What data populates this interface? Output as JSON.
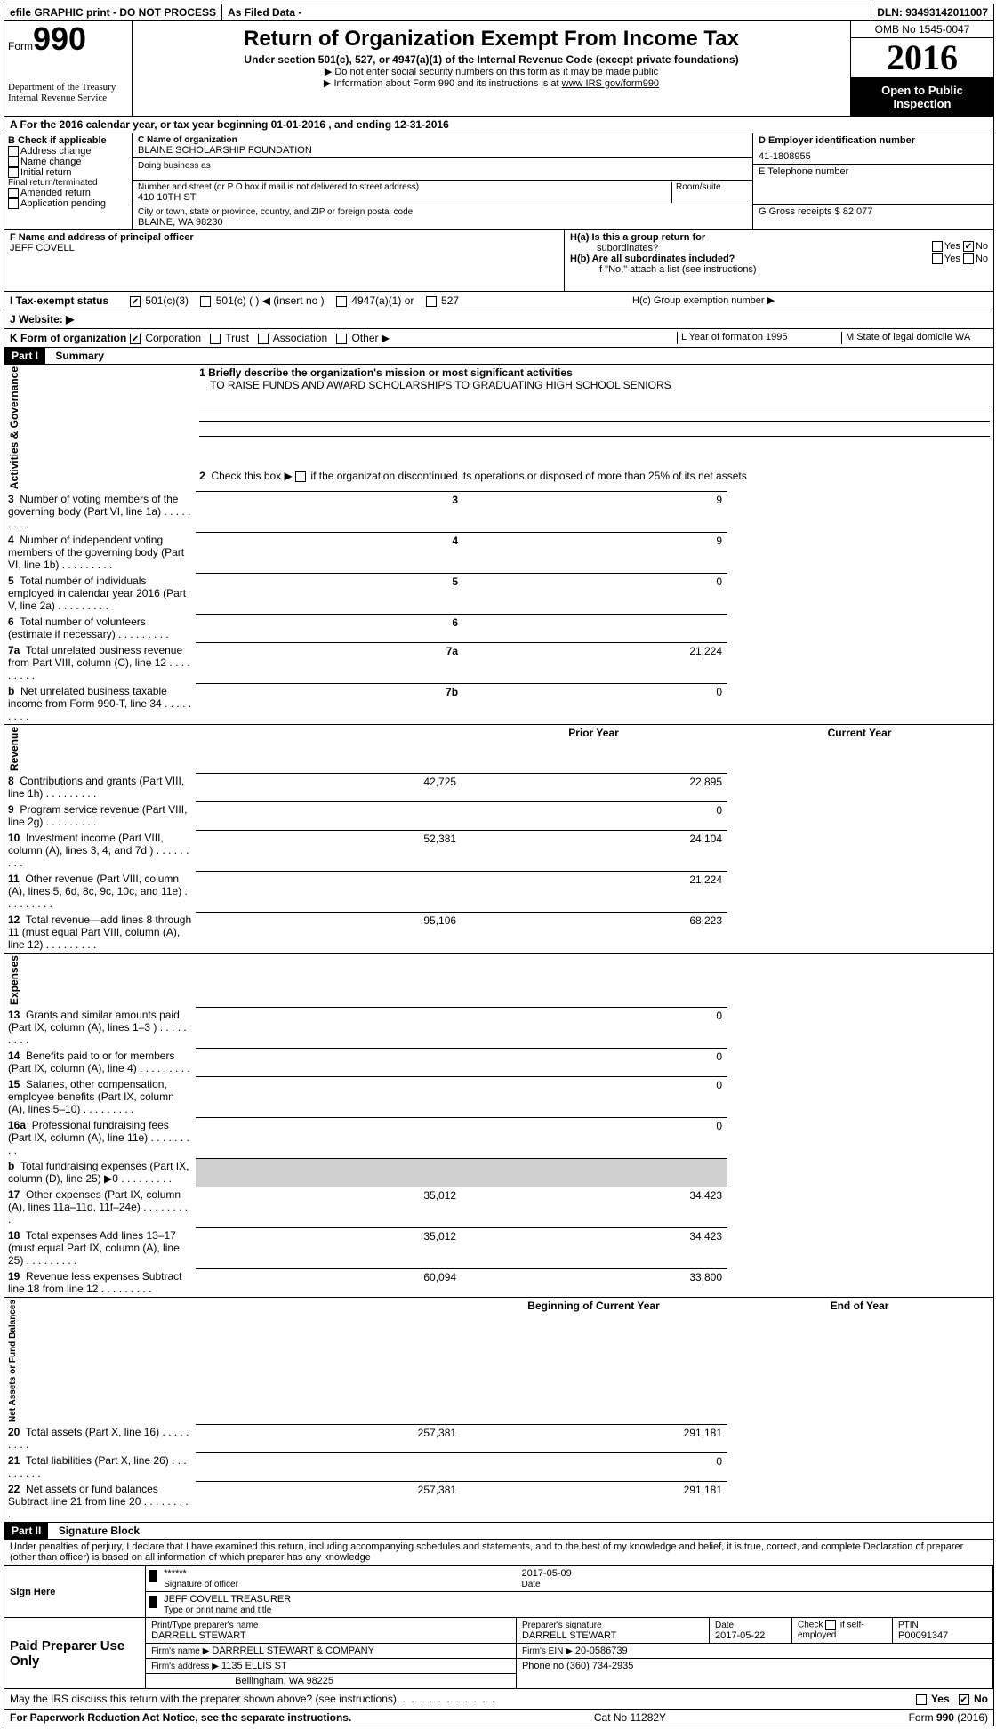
{
  "toprow": {
    "efile": "efile GRAPHIC print - DO NOT PROCESS",
    "asfiled": "As Filed Data -",
    "dln": "DLN: 93493142011007"
  },
  "header": {
    "form_prefix": "Form",
    "form_number": "990",
    "dept1": "Department of the Treasury",
    "dept2": "Internal Revenue Service",
    "title": "Return of Organization Exempt From Income Tax",
    "subtitle": "Under section 501(c), 527, or 4947(a)(1) of the Internal Revenue Code (except private foundations)",
    "note1": "▶ Do not enter social security numbers on this form as it may be made public",
    "note2_pre": "▶ Information about Form 990 and its instructions is at ",
    "note2_link": "www IRS gov/form990",
    "omb": "OMB No 1545-0047",
    "year": "2016",
    "open1": "Open to Public",
    "open2": "Inspection"
  },
  "rowA": "A  For the 2016 calendar year, or tax year beginning 01-01-2016   , and ending 12-31-2016",
  "colB": {
    "head": "B Check if applicable",
    "items": [
      "Address change",
      "Name change",
      "Initial return",
      "Final return/terminated",
      "Amended return",
      "Application pending"
    ]
  },
  "colC": {
    "name_label": "C Name of organization",
    "name": "BLAINE SCHOLARSHIP FOUNDATION",
    "dba_label": "Doing business as",
    "addr_label": "Number and street (or P O  box if mail is not delivered to street address)",
    "room_label": "Room/suite",
    "addr": "410 10TH ST",
    "city_label": "City or town, state or province, country, and ZIP or foreign postal code",
    "city": "BLAINE, WA  98230"
  },
  "colD": {
    "d_label": "D Employer identification number",
    "ein": "41-1808955",
    "e_label": "E Telephone number",
    "g_label": "G Gross receipts $ 82,077"
  },
  "rowF": {
    "label": "F  Name and address of principal officer",
    "name": "JEFF COVELL"
  },
  "rowH": {
    "ha": "H(a)  Is this a group return for",
    "ha2": "subordinates?",
    "hb": "H(b)  Are all subordinates included?",
    "hb_note": "If \"No,\" attach a list  (see instructions)",
    "hc": "H(c)  Group exemption number ▶",
    "yes": "Yes",
    "no": "No"
  },
  "rowI": {
    "label": "I   Tax-exempt status",
    "opt1": "501(c)(3)",
    "opt2": "501(c) (   ) ◀ (insert no )",
    "opt3": "4947(a)(1) or",
    "opt4": "527"
  },
  "rowJ": {
    "label": "J   Website: ▶"
  },
  "rowK": {
    "label": "K Form of organization",
    "opts": [
      "Corporation",
      "Trust",
      "Association",
      "Other ▶"
    ],
    "L": "L Year of formation  1995",
    "M": "M State of legal domicile WA"
  },
  "partI": {
    "part": "Part I",
    "title": "Summary",
    "line1": "1 Briefly describe the organization's mission or most significant activities",
    "mission": "TO RAISE FUNDS AND AWARD SCHOLARSHIPS TO GRADUATING HIGH SCHOOL SENIORS",
    "line2": "2  Check this box ▶      if the organization discontinued its operations or disposed of more than 25% of its net assets",
    "sideA": "Activities & Governance",
    "sideR": "Revenue",
    "sideE": "Expenses",
    "sideN": "Net Assets or Fund Balances",
    "rows_gov": [
      {
        "n": "3",
        "t": "Number of voting members of the governing body (Part VI, line 1a)",
        "box": "3",
        "v": "9"
      },
      {
        "n": "4",
        "t": "Number of independent voting members of the governing body (Part VI, line 1b)",
        "box": "4",
        "v": "9"
      },
      {
        "n": "5",
        "t": "Total number of individuals employed in calendar year 2016 (Part V, line 2a)",
        "box": "5",
        "v": "0"
      },
      {
        "n": "6",
        "t": "Total number of volunteers (estimate if necessary)",
        "box": "6",
        "v": ""
      },
      {
        "n": "7a",
        "t": "Total unrelated business revenue from Part VIII, column (C), line 12",
        "box": "7a",
        "v": "21,224"
      },
      {
        "n": "b",
        "t": "Net unrelated business taxable income from Form 990-T, line 34",
        "box": "7b",
        "v": "0"
      }
    ],
    "hdr_prior": "Prior Year",
    "hdr_current": "Current Year",
    "rows_rev": [
      {
        "n": "8",
        "t": "Contributions and grants (Part VIII, line 1h)",
        "p": "42,725",
        "c": "22,895"
      },
      {
        "n": "9",
        "t": "Program service revenue (Part VIII, line 2g)",
        "p": "",
        "c": "0"
      },
      {
        "n": "10",
        "t": "Investment income (Part VIII, column (A), lines 3, 4, and 7d )",
        "p": "52,381",
        "c": "24,104"
      },
      {
        "n": "11",
        "t": "Other revenue (Part VIII, column (A), lines 5, 6d, 8c, 9c, 10c, and 11e)",
        "p": "",
        "c": "21,224"
      },
      {
        "n": "12",
        "t": "Total revenue—add lines 8 through 11 (must equal Part VIII, column (A), line 12)",
        "p": "95,106",
        "c": "68,223"
      }
    ],
    "rows_exp": [
      {
        "n": "13",
        "t": "Grants and similar amounts paid (Part IX, column (A), lines 1–3 )",
        "p": "",
        "c": "0"
      },
      {
        "n": "14",
        "t": "Benefits paid to or for members (Part IX, column (A), line 4)",
        "p": "",
        "c": "0"
      },
      {
        "n": "15",
        "t": "Salaries, other compensation, employee benefits (Part IX, column (A), lines 5–10)",
        "p": "",
        "c": "0"
      },
      {
        "n": "16a",
        "t": "Professional fundraising fees (Part IX, column (A), line 11e)",
        "p": "",
        "c": "0"
      },
      {
        "n": "b",
        "t": "Total fundraising expenses (Part IX, column (D), line 25) ▶0",
        "p": "GRAY",
        "c": "GRAY"
      },
      {
        "n": "17",
        "t": "Other expenses (Part IX, column (A), lines 11a–11d, 11f–24e)",
        "p": "35,012",
        "c": "34,423"
      },
      {
        "n": "18",
        "t": "Total expenses  Add lines 13–17 (must equal Part IX, column (A), line 25)",
        "p": "35,012",
        "c": "34,423"
      },
      {
        "n": "19",
        "t": "Revenue less expenses  Subtract line 18 from line 12",
        "p": "60,094",
        "c": "33,800"
      }
    ],
    "hdr_beg": "Beginning of Current Year",
    "hdr_end": "End of Year",
    "rows_net": [
      {
        "n": "20",
        "t": "Total assets (Part X, line 16)",
        "p": "257,381",
        "c": "291,181"
      },
      {
        "n": "21",
        "t": "Total liabilities (Part X, line 26)",
        "p": "",
        "c": "0"
      },
      {
        "n": "22",
        "t": "Net assets or fund balances  Subtract line 21 from line 20",
        "p": "257,381",
        "c": "291,181"
      }
    ]
  },
  "partII": {
    "part": "Part II",
    "title": "Signature Block",
    "decl": "Under penalties of perjury, I declare that I have examined this return, including accompanying schedules and statements, and to the best of my knowledge and belief, it is true, correct, and complete  Declaration of preparer (other than officer) is based on all information of which preparer has any knowledge",
    "sign_here": "Sign Here",
    "stars": "******",
    "sig_officer": "Signature of officer",
    "sig_date": "2017-05-09",
    "date_label": "Date",
    "officer_name": "JEFF COVELL  TREASURER",
    "officer_type": "Type or print name and title",
    "paid": "Paid Preparer Use Only",
    "prep_name_label": "Print/Type preparer's name",
    "prep_name": "DARRELL STEWART",
    "prep_sig_label": "Preparer's signature",
    "prep_sig": "DARRELL STEWART",
    "prep_date_label": "Date",
    "prep_date": "2017-05-22",
    "check_if": "Check       if self-employed",
    "ptin_label": "PTIN",
    "ptin": "P00091347",
    "firm_name_label": "Firm's name    ▶",
    "firm_name": "DARRRELL STEWART & COMPANY",
    "firm_ein_label": "Firm's EIN ▶",
    "firm_ein": "20-0586739",
    "firm_addr_label": "Firm's address ▶",
    "firm_addr": "1135 ELLIS ST",
    "firm_city": "Bellingham, WA  98225",
    "phone_label": "Phone no  (360) 734-2935",
    "may_irs": "May the IRS discuss this return with the preparer shown above? (see instructions)"
  },
  "footer": {
    "left": "For Paperwork Reduction Act Notice, see the separate instructions.",
    "mid": "Cat  No  11282Y",
    "right": "Form 990 (2016)"
  }
}
